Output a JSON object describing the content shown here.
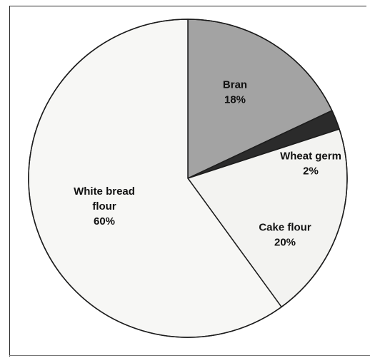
{
  "chart_data": {
    "type": "pie",
    "title": "",
    "start_angle_deg": 0,
    "direction": "clockwise",
    "slices": [
      {
        "label_lines": [
          "Bran",
          "18%"
        ],
        "name": "Bran",
        "value": 18,
        "color": "#a3a3a3"
      },
      {
        "label_lines": [
          "Wheat germ",
          "2%"
        ],
        "name": "Wheat germ",
        "value": 2,
        "color": "#2b2b2b"
      },
      {
        "label_lines": [
          "Cake flour",
          "20%"
        ],
        "name": "Cake flour",
        "value": 20,
        "color": "#f3f3f1"
      },
      {
        "label_lines": [
          "White bread",
          "flour",
          "60%"
        ],
        "name": "White bread flour",
        "value": 60,
        "color": "#f7f7f5"
      }
    ]
  }
}
